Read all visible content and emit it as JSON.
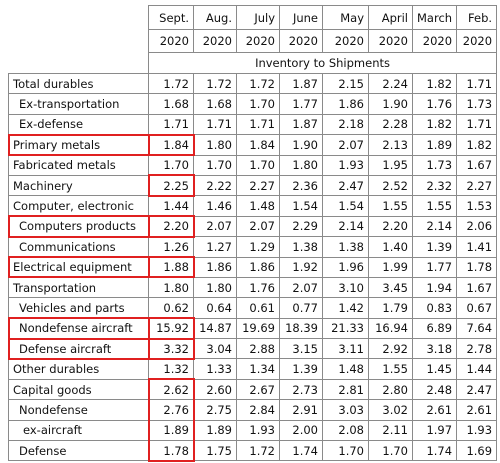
{
  "header": {
    "months": [
      "Sept.",
      "Aug.",
      "July",
      "June",
      "May",
      "April",
      "March",
      "Feb."
    ],
    "years": [
      "2020",
      "2020",
      "2020",
      "2020",
      "2020",
      "2020",
      "2020",
      "2020"
    ],
    "subtitle": "Inventory to Shipments"
  },
  "table": {
    "rows": [
      {
        "label": "Total durables",
        "values": [
          "1.72",
          "1.72",
          "1.72",
          "1.87",
          "2.15",
          "2.24",
          "1.82",
          "1.71"
        ]
      },
      {
        "label": "Ex-transportation",
        "values": [
          "1.68",
          "1.68",
          "1.70",
          "1.77",
          "1.86",
          "1.90",
          "1.76",
          "1.73"
        ]
      },
      {
        "label": "Ex-defense",
        "values": [
          "1.71",
          "1.71",
          "1.71",
          "1.87",
          "2.18",
          "2.28",
          "1.82",
          "1.71"
        ]
      },
      {
        "label": "Primary metals",
        "values": [
          "1.84",
          "1.80",
          "1.84",
          "1.90",
          "2.07",
          "2.13",
          "1.89",
          "1.82"
        ]
      },
      {
        "label": "Fabricated metals",
        "values": [
          "1.70",
          "1.70",
          "1.70",
          "1.80",
          "1.93",
          "1.95",
          "1.73",
          "1.67"
        ]
      },
      {
        "label": "Machinery",
        "values": [
          "2.25",
          "2.22",
          "2.27",
          "2.36",
          "2.47",
          "2.52",
          "2.32",
          "2.27"
        ]
      },
      {
        "label": "Computer, electronic",
        "values": [
          "1.44",
          "1.46",
          "1.48",
          "1.54",
          "1.54",
          "1.55",
          "1.55",
          "1.53"
        ]
      },
      {
        "label": "Computers products",
        "values": [
          "2.20",
          "2.07",
          "2.07",
          "2.29",
          "2.14",
          "2.20",
          "2.14",
          "2.06"
        ]
      },
      {
        "label": "Communications",
        "values": [
          "1.26",
          "1.27",
          "1.29",
          "1.38",
          "1.38",
          "1.40",
          "1.39",
          "1.41"
        ]
      },
      {
        "label": "Electrical equipment",
        "values": [
          "1.88",
          "1.86",
          "1.86",
          "1.92",
          "1.96",
          "1.99",
          "1.77",
          "1.78"
        ]
      },
      {
        "label": "Transportation",
        "values": [
          "1.80",
          "1.80",
          "1.76",
          "2.07",
          "3.10",
          "3.45",
          "1.94",
          "1.67"
        ]
      },
      {
        "label": "Vehicles and parts",
        "values": [
          "0.62",
          "0.64",
          "0.61",
          "0.77",
          "1.42",
          "1.79",
          "0.83",
          "0.67"
        ]
      },
      {
        "label": "Nondefense aircraft",
        "values": [
          "15.92",
          "14.87",
          "19.69",
          "18.39",
          "21.33",
          "16.94",
          "6.89",
          "7.64"
        ]
      },
      {
        "label": "Defense aircraft",
        "values": [
          "3.32",
          "3.04",
          "2.88",
          "3.15",
          "3.11",
          "2.92",
          "3.18",
          "2.78"
        ]
      },
      {
        "label": "Other durables",
        "values": [
          "1.32",
          "1.33",
          "1.34",
          "1.39",
          "1.48",
          "1.55",
          "1.45",
          "1.44"
        ]
      },
      {
        "label": "Capital goods",
        "values": [
          "2.62",
          "2.60",
          "2.67",
          "2.73",
          "2.81",
          "2.80",
          "2.48",
          "2.47"
        ]
      },
      {
        "label": "Nondefense",
        "values": [
          "2.76",
          "2.75",
          "2.84",
          "2.91",
          "3.03",
          "3.02",
          "2.61",
          "2.61"
        ]
      },
      {
        "label": "ex-aircraft",
        "values": [
          "1.89",
          "1.89",
          "1.93",
          "2.00",
          "2.08",
          "2.11",
          "1.97",
          "1.93"
        ]
      },
      {
        "label": "Defense",
        "values": [
          "1.78",
          "1.75",
          "1.72",
          "1.74",
          "1.70",
          "1.70",
          "1.74",
          "1.69"
        ]
      }
    ]
  }
}
